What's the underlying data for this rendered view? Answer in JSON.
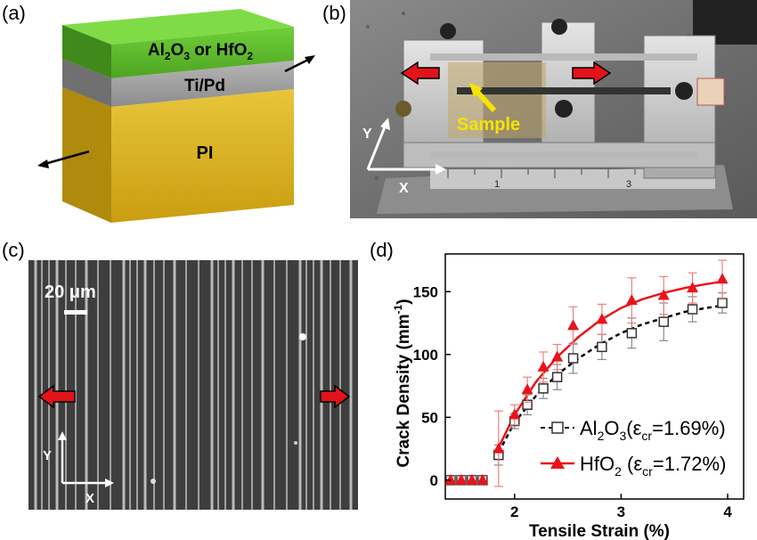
{
  "panels": {
    "a": {
      "label": "(a)",
      "layer_top": "Al",
      "layer_top_sub1": "2",
      "layer_top_mid": "O",
      "layer_top_sub2": "3",
      "layer_top_or": " or HfO",
      "layer_top_sub3": "2",
      "layer_middle": "Ti/Pd",
      "layer_bottom": "PI",
      "colors": {
        "top": "#5fbf2a",
        "middle": "#9a9a9a",
        "bottom": "#d9b21f"
      }
    },
    "b": {
      "label": "(b)",
      "sample_label": "Sample",
      "axis_y": "Y",
      "axis_x": "X",
      "ruler_marks": [
        "1",
        "3"
      ]
    },
    "c": {
      "label": "(c)",
      "scale_bar": "20 μm",
      "axis_y": "Y",
      "axis_x": "X"
    },
    "d": {
      "label": "(d)"
    }
  },
  "chart_data": {
    "type": "scatter",
    "xlabel": "Tensile Strain (%)",
    "ylabel": "Crack Density (mm",
    "ylabel_sup": "-1",
    "ylabel_end": ")",
    "xlim": [
      1.35,
      4.15
    ],
    "ylim": [
      -15,
      180
    ],
    "xticks": [
      2,
      3,
      4
    ],
    "yticks": [
      0,
      50,
      100,
      150
    ],
    "legend_placement": "bottom-right",
    "series": [
      {
        "name": "Al2O3",
        "legend_main": "Al",
        "legend_sub1": "2",
        "legend_mid": "O",
        "legend_sub2": "3",
        "legend_paren": "(ε",
        "legend_cr": "cr",
        "legend_val": "=1.69%)",
        "marker": "open-square",
        "color": "#333333",
        "x": [
          1.4,
          1.5,
          1.6,
          1.7,
          1.85,
          2.0,
          2.12,
          2.27,
          2.4,
          2.55,
          2.82,
          3.1,
          3.4,
          3.67,
          3.95
        ],
        "y": [
          0,
          0,
          0,
          0,
          20,
          47,
          60,
          73,
          82,
          97,
          106,
          117,
          126,
          136,
          141
        ],
        "err": [
          3,
          3,
          3,
          3,
          8,
          6,
          8,
          8,
          10,
          12,
          10,
          12,
          15,
          10,
          8
        ]
      },
      {
        "name": "HfO2",
        "legend_main": "HfO",
        "legend_sub1": "2",
        "legend_paren": " (ε",
        "legend_cr": "cr",
        "legend_val": "=1.72%)",
        "marker": "filled-triangle",
        "color": "#e8141a",
        "x": [
          1.4,
          1.5,
          1.6,
          1.7,
          1.85,
          2.0,
          2.12,
          2.27,
          2.4,
          2.55,
          2.82,
          3.1,
          3.4,
          3.67,
          3.95
        ],
        "y": [
          0,
          0,
          0,
          0,
          25,
          52,
          72,
          90,
          98,
          123,
          128,
          143,
          147,
          153,
          160
        ],
        "err": [
          3,
          3,
          3,
          3,
          30,
          8,
          10,
          12,
          10,
          15,
          12,
          18,
          15,
          12,
          15
        ]
      }
    ],
    "fit_lines": [
      {
        "series": "Al2O3",
        "style": "dashed",
        "color": "#000000",
        "x": [
          1.85,
          2.0,
          2.2,
          2.4,
          2.6,
          2.8,
          3.0,
          3.2,
          3.4,
          3.6,
          3.8,
          3.95
        ],
        "y": [
          22,
          46,
          67,
          84,
          97,
          108,
          117,
          124,
          129,
          134,
          137,
          139
        ]
      },
      {
        "series": "HfO2",
        "style": "solid",
        "color": "#e8141a",
        "x": [
          1.85,
          2.0,
          2.2,
          2.4,
          2.6,
          2.8,
          3.0,
          3.2,
          3.4,
          3.6,
          3.8,
          3.95
        ],
        "y": [
          26,
          52,
          78,
          98,
          114,
          127,
          137,
          144,
          149,
          153,
          156,
          158
        ]
      }
    ]
  }
}
